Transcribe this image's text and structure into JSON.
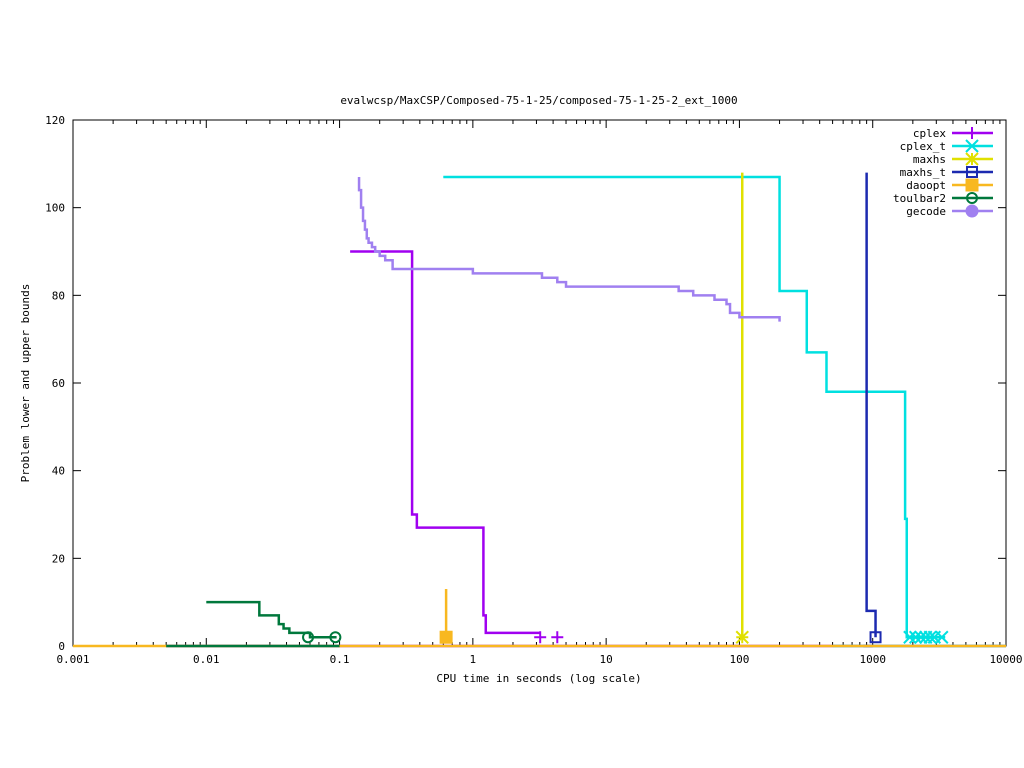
{
  "chart_data": {
    "type": "line",
    "title": "evalwcsp/MaxCSP/Composed-75-1-25/composed-75-1-25-2_ext_1000",
    "xlabel": "CPU time in seconds (log scale)",
    "ylabel": "Problem lower and upper bounds",
    "xscale": "log",
    "xlim": [
      0.001,
      10000
    ],
    "ylim": [
      0,
      120
    ],
    "x_ticks": [
      0.001,
      0.01,
      0.1,
      1,
      10,
      100,
      1000,
      10000
    ],
    "x_tick_labels": [
      "0.001",
      "0.01",
      "0.1",
      "1",
      "10",
      "100",
      "1000",
      "10000"
    ],
    "y_ticks": [
      0,
      20,
      40,
      60,
      80,
      100,
      120
    ],
    "y_tick_labels": [
      "0",
      "20",
      "40",
      "60",
      "80",
      "100",
      "120"
    ],
    "grid": false,
    "legend_position": "top-right",
    "series": [
      {
        "name": "cplex",
        "color": "#a000f0",
        "marker": "plus",
        "lines": [
          [
            [
              0.12,
              90
            ],
            [
              0.35,
              90
            ],
            [
              0.35,
              30
            ],
            [
              0.38,
              30
            ],
            [
              0.38,
              27
            ],
            [
              1.2,
              27
            ],
            [
              1.2,
              7
            ],
            [
              1.25,
              7
            ],
            [
              1.25,
              3
            ],
            [
              3.2,
              3
            ]
          ],
          [
            [
              0.005,
              0
            ],
            [
              10000,
              0
            ]
          ]
        ],
        "markers": [
          [
            3.2,
            2
          ],
          [
            4.3,
            2
          ]
        ]
      },
      {
        "name": "cplex_t",
        "color": "#00e0e0",
        "marker": "x",
        "lines": [
          [
            [
              0.6,
              107
            ],
            [
              200,
              107
            ],
            [
              200,
              81
            ],
            [
              320,
              81
            ],
            [
              320,
              67
            ],
            [
              450,
              67
            ],
            [
              450,
              58
            ],
            [
              1750,
              58
            ],
            [
              1750,
              29
            ],
            [
              1800,
              29
            ],
            [
              1800,
              2
            ],
            [
              3500,
              2
            ]
          ],
          [
            [
              500,
              0
            ],
            [
              10000,
              0
            ]
          ]
        ],
        "markers": [
          [
            1900,
            2
          ],
          [
            2100,
            2
          ],
          [
            2300,
            2
          ],
          [
            2500,
            2
          ],
          [
            2700,
            2
          ],
          [
            2900,
            2
          ],
          [
            3300,
            2
          ]
        ]
      },
      {
        "name": "maxhs",
        "color": "#e0e000",
        "marker": "asterisk",
        "lines": [
          [
            [
              105,
              108
            ],
            [
              105,
              2
            ]
          ]
        ],
        "markers": [
          [
            105,
            2
          ]
        ]
      },
      {
        "name": "maxhs_t",
        "color": "#1c2ab0",
        "marker": "square",
        "lines": [
          [
            [
              900,
              108
            ],
            [
              900,
              8
            ],
            [
              1050,
              8
            ],
            [
              1050,
              2
            ]
          ],
          [
            [
              850,
              0
            ],
            [
              1000,
              0
            ]
          ]
        ],
        "markers": [
          [
            1050,
            2
          ]
        ]
      },
      {
        "name": "daoopt",
        "color": "#f8b820",
        "marker": "filled-square",
        "lines": [
          [
            [
              0.63,
              13
            ],
            [
              0.63,
              2
            ]
          ],
          [
            [
              0.001,
              0
            ],
            [
              10000,
              0
            ]
          ]
        ],
        "markers": [
          [
            0.63,
            2
          ]
        ]
      },
      {
        "name": "toulbar2",
        "color": "#00783c",
        "marker": "circle",
        "lines": [
          [
            [
              0.01,
              10
            ],
            [
              0.025,
              10
            ],
            [
              0.025,
              7
            ],
            [
              0.035,
              7
            ],
            [
              0.035,
              5
            ],
            [
              0.038,
              5
            ],
            [
              0.038,
              4
            ],
            [
              0.042,
              4
            ],
            [
              0.042,
              3
            ],
            [
              0.06,
              3
            ],
            [
              0.06,
              2
            ],
            [
              0.095,
              2
            ]
          ],
          [
            [
              0.005,
              0
            ],
            [
              0.1,
              0
            ]
          ]
        ],
        "markers": [
          [
            0.058,
            2
          ],
          [
            0.093,
            2
          ]
        ]
      },
      {
        "name": "gecode",
        "color": "#a080f0",
        "marker": "filled-circle",
        "lines": [
          [
            [
              0.14,
              107
            ],
            [
              0.14,
              104
            ],
            [
              0.145,
              104
            ],
            [
              0.145,
              100
            ],
            [
              0.15,
              100
            ],
            [
              0.15,
              97
            ],
            [
              0.155,
              97
            ],
            [
              0.155,
              95
            ],
            [
              0.16,
              95
            ],
            [
              0.16,
              93
            ],
            [
              0.165,
              93
            ],
            [
              0.165,
              92
            ],
            [
              0.175,
              92
            ],
            [
              0.175,
              91
            ],
            [
              0.185,
              91
            ],
            [
              0.185,
              90
            ],
            [
              0.2,
              90
            ],
            [
              0.2,
              89
            ],
            [
              0.22,
              89
            ],
            [
              0.22,
              88
            ],
            [
              0.25,
              88
            ],
            [
              0.25,
              86
            ],
            [
              1.0,
              86
            ],
            [
              1.0,
              85
            ],
            [
              3.3,
              85
            ],
            [
              3.3,
              84
            ],
            [
              4.3,
              84
            ],
            [
              4.3,
              83
            ],
            [
              5.0,
              83
            ],
            [
              5.0,
              82
            ],
            [
              35,
              82
            ],
            [
              35,
              81
            ],
            [
              45,
              81
            ],
            [
              45,
              80
            ],
            [
              65,
              80
            ],
            [
              65,
              79
            ],
            [
              80,
              79
            ],
            [
              80,
              78
            ],
            [
              85,
              78
            ],
            [
              85,
              76
            ],
            [
              100,
              76
            ],
            [
              100,
              75
            ],
            [
              200,
              75
            ],
            [
              200,
              74
            ]
          ]
        ],
        "markers": []
      }
    ]
  }
}
